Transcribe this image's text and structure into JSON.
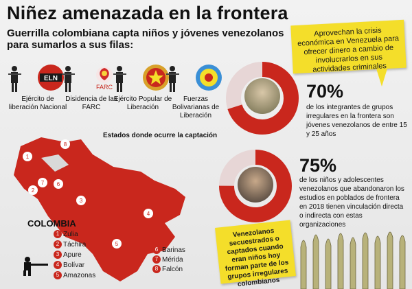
{
  "title": "Niñez amenazada en la frontera",
  "subtitle": "Guerrilla colombiana capta niños y jóvenes venezolanos para sumarlos a sus filas:",
  "callout_top": "Aprovechan la crisis económica en Venezuela para ofrecer dinero a cambio de involucrarlos en sus actividades criminales",
  "groups": [
    {
      "label": "Ejército de liberación Nacional",
      "emblem_text": "ELN",
      "color": "#c9271d"
    },
    {
      "label": "Disidencia de las FARC",
      "emblem_text": "FARC",
      "color": "#c9271d"
    },
    {
      "label": "Ejército Popular de Liberación",
      "emblem_text": "",
      "color": "#d8a12a"
    },
    {
      "label": "Fuerzas Bolivarianas de Liberación",
      "emblem_text": "",
      "color": "#3a8fd6"
    }
  ],
  "map": {
    "caption": "Estados donde ocurre la captación",
    "country_label": "COLOMBIA",
    "states": [
      {
        "num": "1",
        "name": "Zulia"
      },
      {
        "num": "2",
        "name": "Táchira"
      },
      {
        "num": "3",
        "name": "Apure"
      },
      {
        "num": "4",
        "name": "Bolívar"
      },
      {
        "num": "5",
        "name": "Amazonas"
      },
      {
        "num": "6",
        "name": "Barinas"
      },
      {
        "num": "7",
        "name": "Mérida"
      },
      {
        "num": "8",
        "name": "Falcón"
      }
    ]
  },
  "stats": [
    {
      "percent": "70%",
      "value": 0.7,
      "text": "de los integrantes de grupos irregulares en la frontera son jóvenes venezolanos de entre 15 y 25 años"
    },
    {
      "percent": "75%",
      "value": 0.75,
      "text": "de los niños y adolescentes venezolanos que abandonaron los estudios en poblados de frontera en 2018 tienen vinculación directa o indirecta con estas organizaciones"
    }
  ],
  "callout_bottom": "Venezolanos secuestrados o captados cuando eran niños hoy forman parte de los grupos irregulares colombianos",
  "colors": {
    "accent": "#c9271d",
    "note": "#f4de2a"
  }
}
